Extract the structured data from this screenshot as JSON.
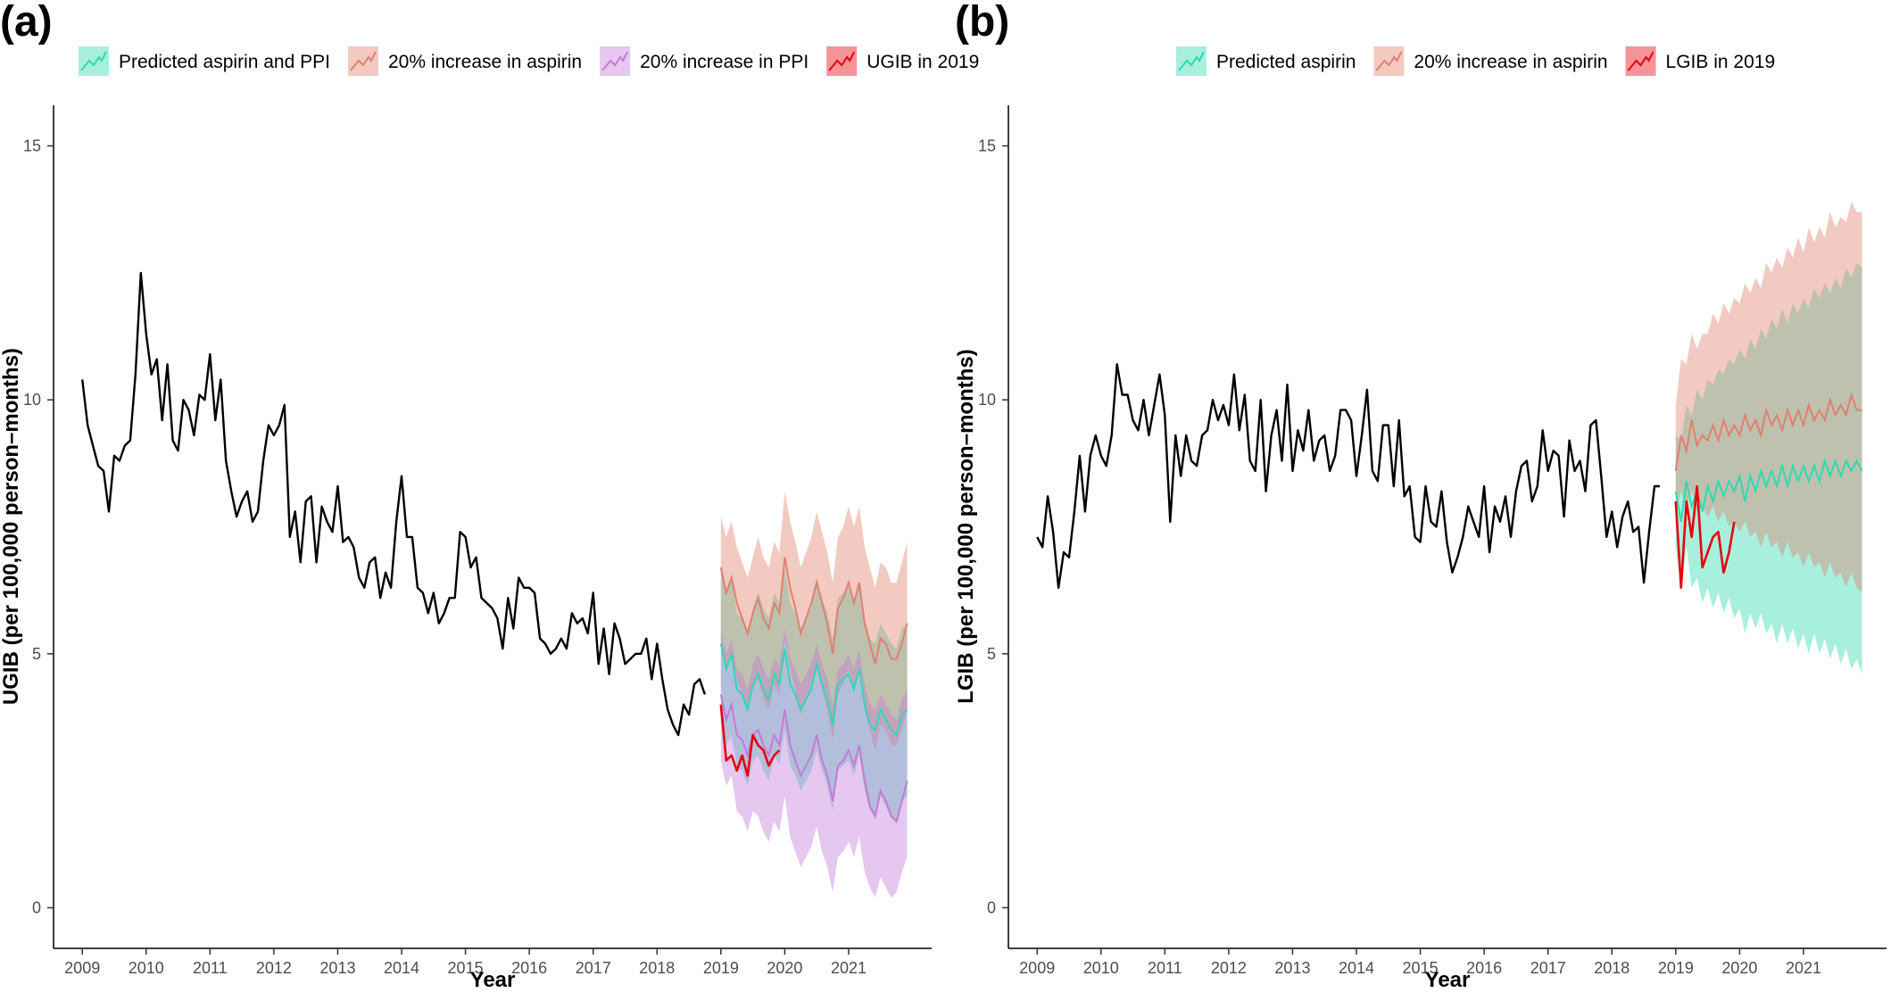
{
  "chart_data": [
    {
      "type": "line",
      "panel_label": "(a)",
      "title": "",
      "xlabel": "Year",
      "ylabel": "UGIB (per 100,000 person–months)",
      "xlim": [
        2008.55,
        2022.3
      ],
      "ylim": [
        -0.8,
        15.8
      ],
      "xticks": [
        "2009",
        "2010",
        "2011",
        "2012",
        "2013",
        "2014",
        "2015",
        "2016",
        "2017",
        "2018",
        "2019",
        "2020",
        "2021"
      ],
      "yticks": [
        "0",
        "5",
        "10",
        "15"
      ],
      "grid": false,
      "legend_position": "top",
      "colors": {
        "observed": "#000000",
        "predicted": "#2fd9b1",
        "aspirin_increase": "#e0806e",
        "ppi_increase": "#c47ad8",
        "actual_2019": "#e8000b"
      },
      "legend": [
        {
          "label": "Predicted aspirin and PPI",
          "color": "#2fd9b1"
        },
        {
          "label": "20% increase in aspirin",
          "color": "#e0806e"
        },
        {
          "label": "20% increase in PPI",
          "color": "#c47ad8"
        },
        {
          "label": "UGIB in 2019",
          "color": "#e8000b"
        }
      ],
      "observed": {
        "start_year": 2009,
        "values": [
          10.4,
          9.5,
          9.1,
          8.7,
          8.6,
          7.8,
          8.9,
          8.8,
          9.1,
          9.2,
          10.5,
          12.5,
          11.3,
          10.5,
          10.8,
          9.6,
          10.7,
          9.2,
          9.0,
          10.0,
          9.8,
          9.3,
          10.1,
          10.0,
          10.9,
          9.6,
          10.4,
          8.8,
          8.2,
          7.7,
          8.0,
          8.2,
          7.6,
          7.8,
          8.8,
          9.5,
          9.3,
          9.5,
          9.9,
          7.3,
          7.8,
          6.8,
          8.0,
          8.1,
          6.8,
          7.9,
          7.6,
          7.4,
          8.3,
          7.2,
          7.3,
          7.1,
          6.5,
          6.3,
          6.8,
          6.9,
          6.1,
          6.6,
          6.3,
          7.6,
          8.5,
          7.3,
          7.3,
          6.3,
          6.2,
          5.8,
          6.2,
          5.6,
          5.8,
          6.1,
          6.1,
          7.4,
          7.3,
          6.7,
          6.9,
          6.1,
          6.0,
          5.9,
          5.7,
          5.1,
          6.1,
          5.5,
          6.5,
          6.3,
          6.3,
          6.2,
          5.3,
          5.2,
          5.0,
          5.1,
          5.3,
          5.1,
          5.8,
          5.6,
          5.7,
          5.4,
          6.2,
          4.8,
          5.5,
          4.6,
          5.6,
          5.3,
          4.8,
          4.9,
          5.0,
          5.0,
          5.3,
          4.5,
          5.2,
          4.5,
          3.9,
          3.6,
          3.4,
          4.0,
          3.8,
          4.4,
          4.5,
          4.2
        ]
      },
      "forecast_2019_2021": {
        "start_year": 2019,
        "series": [
          {
            "name": "Predicted aspirin and PPI",
            "color": "#2fd9b1",
            "values": [
              5.2,
              4.7,
              5.0,
              4.3,
              4.2,
              3.9,
              4.4,
              4.6,
              4.3,
              4.1,
              4.6,
              4.4,
              5.1,
              4.4,
              4.2,
              3.9,
              4.1,
              4.3,
              4.8,
              4.4,
              4.1,
              3.6,
              4.4,
              4.5,
              4.6,
              4.3,
              4.7,
              4.0,
              3.6,
              3.5,
              3.9,
              3.7,
              3.5,
              3.4,
              3.8,
              3.9
            ],
            "lower": [
              3.7,
              3.2,
              3.4,
              2.8,
              2.7,
              2.4,
              2.9,
              3.0,
              2.7,
              2.5,
              3.0,
              2.8,
              3.5,
              2.8,
              2.6,
              2.3,
              2.5,
              2.7,
              3.1,
              2.7,
              2.4,
              1.9,
              2.7,
              2.8,
              2.9,
              2.6,
              3.0,
              2.3,
              1.9,
              1.8,
              2.2,
              2.0,
              1.8,
              1.7,
              2.1,
              2.2
            ],
            "upper": [
              6.7,
              6.2,
              6.5,
              5.8,
              5.7,
              5.4,
              5.9,
              6.2,
              5.9,
              5.7,
              6.2,
              6.0,
              6.7,
              6.0,
              5.8,
              5.5,
              5.7,
              5.9,
              6.5,
              6.1,
              5.8,
              5.3,
              6.1,
              6.2,
              6.3,
              6.0,
              6.4,
              5.7,
              5.3,
              5.2,
              5.6,
              5.4,
              5.2,
              5.1,
              5.5,
              5.6
            ]
          },
          {
            "name": "20% increase in aspirin",
            "color": "#e0806e",
            "values": [
              6.7,
              6.2,
              6.5,
              6.0,
              5.7,
              5.4,
              5.8,
              6.1,
              5.7,
              5.5,
              6.0,
              5.8,
              6.9,
              6.3,
              5.9,
              5.4,
              5.7,
              6.0,
              6.4,
              6.0,
              5.6,
              5.0,
              5.9,
              6.1,
              6.4,
              6.0,
              6.4,
              5.6,
              5.2,
              4.8,
              5.3,
              5.2,
              4.9,
              4.9,
              5.2,
              5.6
            ],
            "lower": [
              5.2,
              4.7,
              5.0,
              4.5,
              4.2,
              3.9,
              4.3,
              4.5,
              4.1,
              3.9,
              4.4,
              4.2,
              5.3,
              4.7,
              4.3,
              3.8,
              4.1,
              4.4,
              4.7,
              4.3,
              3.9,
              3.3,
              4.2,
              4.4,
              4.7,
              4.3,
              4.7,
              3.9,
              3.5,
              3.1,
              3.6,
              3.5,
              3.2,
              3.2,
              3.5,
              3.9
            ],
            "upper": [
              7.7,
              7.3,
              7.6,
              7.1,
              6.8,
              6.5,
              6.9,
              7.3,
              6.9,
              6.7,
              7.2,
              7.0,
              8.2,
              7.6,
              7.2,
              6.7,
              7.0,
              7.3,
              7.8,
              7.4,
              7.0,
              6.4,
              7.3,
              7.5,
              7.9,
              7.5,
              7.9,
              7.1,
              6.7,
              6.3,
              6.8,
              6.7,
              6.4,
              6.4,
              6.8,
              7.2
            ]
          },
          {
            "name": "20% increase in PPI",
            "color": "#c47ad8",
            "values": [
              4.2,
              3.7,
              4.0,
              3.4,
              3.3,
              3.0,
              3.4,
              3.5,
              3.2,
              3.0,
              3.4,
              3.2,
              3.9,
              3.2,
              2.9,
              2.6,
              2.8,
              3.0,
              3.4,
              2.9,
              2.6,
              2.1,
              2.8,
              2.9,
              3.1,
              2.8,
              3.2,
              2.5,
              2.0,
              1.8,
              2.3,
              2.1,
              1.8,
              1.7,
              2.1,
              2.5
            ],
            "lower": [
              2.9,
              2.4,
              2.6,
              1.9,
              1.8,
              1.5,
              1.9,
              1.8,
              1.5,
              1.3,
              1.7,
              1.5,
              2.2,
              1.4,
              1.1,
              0.8,
              1.0,
              1.2,
              1.6,
              1.1,
              0.8,
              0.3,
              1.0,
              1.1,
              1.3,
              1.0,
              1.4,
              0.7,
              0.4,
              0.2,
              0.6,
              0.4,
              0.2,
              0.3,
              0.7,
              1.0
            ],
            "upper": [
              5.5,
              5.0,
              5.3,
              4.7,
              4.6,
              4.3,
              4.8,
              5.0,
              4.7,
              4.5,
              4.9,
              4.8,
              5.5,
              4.9,
              4.7,
              4.4,
              4.6,
              4.8,
              5.2,
              4.8,
              4.5,
              4.0,
              4.7,
              4.8,
              5.0,
              4.7,
              5.1,
              4.4,
              4.0,
              3.9,
              4.2,
              4.0,
              3.8,
              3.7,
              4.1,
              4.3
            ]
          }
        ]
      },
      "actual_2019": {
        "name": "UGIB in 2019",
        "start_year": 2019,
        "values": [
          4.0,
          2.9,
          3.0,
          2.7,
          3.0,
          2.6,
          3.4,
          3.2,
          3.1,
          2.8,
          3.0,
          3.1
        ]
      }
    },
    {
      "type": "line",
      "panel_label": "(b)",
      "title": "",
      "xlabel": "Year",
      "ylabel": "LGIB (per 100,000 person–months)",
      "xlim": [
        2008.55,
        2022.3
      ],
      "ylim": [
        -0.8,
        15.8
      ],
      "xticks": [
        "2009",
        "2010",
        "2011",
        "2012",
        "2013",
        "2014",
        "2015",
        "2016",
        "2017",
        "2018",
        "2019",
        "2020",
        "2021"
      ],
      "yticks": [
        "0",
        "5",
        "10",
        "15"
      ],
      "grid": false,
      "legend_position": "top",
      "colors": {
        "observed": "#000000",
        "predicted": "#2fd9b1",
        "aspirin_increase": "#e0806e",
        "actual_2019": "#e8000b"
      },
      "legend": [
        {
          "label": "Predicted aspirin",
          "color": "#2fd9b1"
        },
        {
          "label": "20% increase in aspirin",
          "color": "#e0806e"
        },
        {
          "label": "LGIB in 2019",
          "color": "#e8000b"
        }
      ],
      "observed": {
        "start_year": 2009,
        "values": [
          7.3,
          7.1,
          8.1,
          7.4,
          6.3,
          7.0,
          6.9,
          7.8,
          8.9,
          7.8,
          8.9,
          9.3,
          8.9,
          8.7,
          9.3,
          10.7,
          10.1,
          10.1,
          9.6,
          9.4,
          10.0,
          9.3,
          9.9,
          10.5,
          9.7,
          7.6,
          9.3,
          8.5,
          9.3,
          8.8,
          8.7,
          9.3,
          9.4,
          10.0,
          9.6,
          9.9,
          9.5,
          10.5,
          9.4,
          10.1,
          8.8,
          8.6,
          10.0,
          8.2,
          9.3,
          9.8,
          8.8,
          10.3,
          8.6,
          9.4,
          9.0,
          9.8,
          8.8,
          9.2,
          9.3,
          8.6,
          8.9,
          9.8,
          9.8,
          9.6,
          8.5,
          9.3,
          10.2,
          8.6,
          8.4,
          9.5,
          9.5,
          8.3,
          9.6,
          8.1,
          8.3,
          7.3,
          7.2,
          8.3,
          7.6,
          7.5,
          8.2,
          7.2,
          6.6,
          6.9,
          7.3,
          7.9,
          7.6,
          7.3,
          8.3,
          7.0,
          7.9,
          7.6,
          8.1,
          7.3,
          8.2,
          8.7,
          8.8,
          8.0,
          8.3,
          9.4,
          8.6,
          9.0,
          8.9,
          7.7,
          9.2,
          8.6,
          8.8,
          8.2,
          9.5,
          9.6,
          8.5,
          7.3,
          7.8,
          7.1,
          7.7,
          8.0,
          7.4,
          7.5,
          6.4,
          7.4,
          8.3,
          8.3
        ]
      },
      "forecast_2019_2021": {
        "start_year": 2019,
        "series": [
          {
            "name": "Predicted aspirin",
            "color": "#2fd9b1",
            "values": [
              8.2,
              7.6,
              8.4,
              7.9,
              8.2,
              7.8,
              8.3,
              8.0,
              8.4,
              8.1,
              8.4,
              8.2,
              8.5,
              8.0,
              8.5,
              8.2,
              8.6,
              8.3,
              8.6,
              8.3,
              8.7,
              8.3,
              8.7,
              8.4,
              8.7,
              8.4,
              8.7,
              8.4,
              8.8,
              8.5,
              8.8,
              8.5,
              8.8,
              8.6,
              8.8,
              8.6
            ],
            "lower": [
              7.1,
              6.3,
              7.1,
              6.3,
              6.5,
              6.0,
              6.3,
              5.9,
              6.2,
              5.8,
              6.1,
              5.7,
              5.9,
              5.4,
              5.8,
              5.5,
              5.8,
              5.4,
              5.6,
              5.2,
              5.6,
              5.2,
              5.5,
              5.1,
              5.4,
              5.0,
              5.4,
              5.0,
              5.3,
              4.9,
              5.2,
              4.8,
              5.1,
              4.7,
              4.9,
              4.6
            ],
            "upper": [
              9.3,
              9.2,
              9.9,
              9.7,
              10.2,
              10.0,
              10.4,
              10.3,
              10.6,
              10.5,
              10.8,
              10.7,
              11.0,
              10.8,
              11.2,
              11.0,
              11.4,
              11.2,
              11.6,
              11.4,
              11.8,
              11.5,
              11.9,
              11.7,
              12.0,
              11.8,
              12.2,
              12.0,
              12.3,
              12.1,
              12.4,
              12.2,
              12.6,
              12.4,
              12.7,
              12.6
            ]
          },
          {
            "name": "20% increase in aspirin",
            "color": "#e0806e",
            "values": [
              8.6,
              9.3,
              9.0,
              9.6,
              9.1,
              9.3,
              9.2,
              9.5,
              9.2,
              9.6,
              9.3,
              9.5,
              9.3,
              9.7,
              9.4,
              9.6,
              9.3,
              9.8,
              9.5,
              9.7,
              9.4,
              9.8,
              9.5,
              9.8,
              9.5,
              9.9,
              9.6,
              9.8,
              9.6,
              10.0,
              9.7,
              9.9,
              9.7,
              10.1,
              9.8,
              9.8
            ],
            "lower": [
              7.8,
              8.2,
              7.9,
              8.2,
              7.8,
              7.9,
              7.7,
              7.9,
              7.6,
              7.8,
              7.5,
              7.6,
              7.4,
              7.6,
              7.3,
              7.4,
              7.1,
              7.4,
              7.1,
              7.2,
              6.9,
              7.2,
              6.9,
              7.0,
              6.7,
              7.0,
              6.7,
              6.8,
              6.5,
              6.8,
              6.5,
              6.6,
              6.3,
              6.6,
              6.3,
              6.2
            ],
            "upper": [
              9.9,
              10.8,
              10.7,
              11.3,
              11.0,
              11.3,
              11.3,
              11.7,
              11.5,
              11.9,
              11.7,
              12.0,
              11.9,
              12.3,
              12.1,
              12.4,
              12.2,
              12.7,
              12.5,
              12.8,
              12.6,
              13.0,
              12.8,
              13.2,
              12.9,
              13.4,
              13.1,
              13.4,
              13.2,
              13.7,
              13.4,
              13.6,
              13.5,
              13.9,
              13.7,
              13.7
            ]
          }
        ]
      },
      "actual_2019": {
        "name": "LGIB in 2019",
        "start_year": 2019,
        "values": [
          8.0,
          6.3,
          8.0,
          7.3,
          8.3,
          6.7,
          7.0,
          7.3,
          7.4,
          6.6,
          7.0,
          7.6
        ]
      }
    }
  ]
}
